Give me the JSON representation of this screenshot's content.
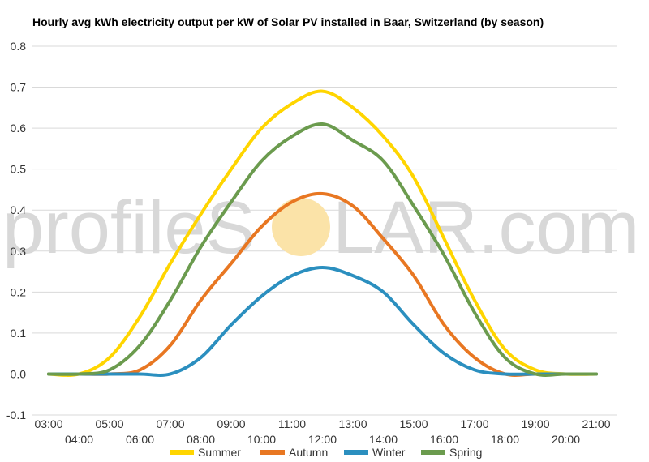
{
  "chart_data": {
    "type": "line",
    "title": "Hourly avg kWh electricity output per kW of Solar PV installed in Baar, Switzerland (by season)",
    "watermark": {
      "left": "profileS",
      "right": "LAR.com",
      "sun_color": "#fbe3a8"
    },
    "x": [
      "03:00",
      "04:00",
      "05:00",
      "06:00",
      "07:00",
      "08:00",
      "09:00",
      "10:00",
      "11:00",
      "12:00",
      "13:00",
      "14:00",
      "15:00",
      "16:00",
      "17:00",
      "18:00",
      "19:00",
      "20:00",
      "21:00"
    ],
    "ylim": [
      -0.1,
      0.8
    ],
    "yticks": [
      "0.8",
      "0.7",
      "0.6",
      "0.5",
      "0.4",
      "0.3",
      "0.2",
      "0.1",
      "0.0",
      "-0.1"
    ],
    "grid": true,
    "legend_position": "bottom",
    "series": [
      {
        "name": "Summer",
        "color": "#ffd500",
        "values": [
          0,
          0,
          0.04,
          0.14,
          0.27,
          0.39,
          0.5,
          0.6,
          0.66,
          0.69,
          0.65,
          0.58,
          0.48,
          0.33,
          0.18,
          0.06,
          0.01,
          0,
          0
        ]
      },
      {
        "name": "Autumn",
        "color": "#e87722",
        "values": [
          0,
          0,
          0,
          0.01,
          0.07,
          0.18,
          0.27,
          0.36,
          0.42,
          0.44,
          0.41,
          0.33,
          0.24,
          0.12,
          0.04,
          0,
          0,
          0,
          0
        ]
      },
      {
        "name": "Winter",
        "color": "#2b8fbf",
        "values": [
          0,
          0,
          0,
          0,
          0,
          0.04,
          0.12,
          0.19,
          0.24,
          0.26,
          0.24,
          0.2,
          0.12,
          0.05,
          0.01,
          0,
          0,
          0,
          0
        ]
      },
      {
        "name": "Spring",
        "color": "#6b9b4e",
        "values": [
          0,
          0,
          0.01,
          0.07,
          0.18,
          0.31,
          0.42,
          0.52,
          0.58,
          0.61,
          0.57,
          0.52,
          0.41,
          0.29,
          0.15,
          0.04,
          0,
          0,
          0
        ]
      }
    ]
  }
}
